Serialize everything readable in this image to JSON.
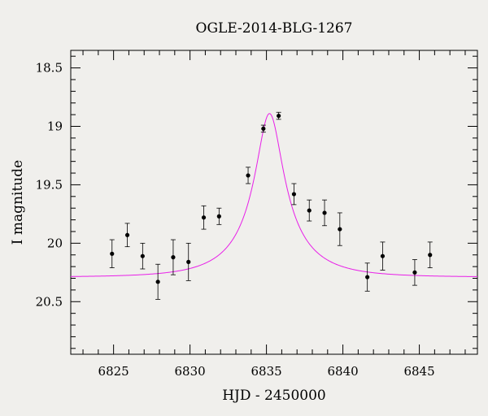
{
  "chart_data": {
    "type": "scatter",
    "title": "OGLE-2014-BLG-1267",
    "xlabel": "HJD - 2450000",
    "ylabel": "I magnitude",
    "xlim": [
      6822.2,
      6848.8
    ],
    "ylim": [
      20.95,
      18.35
    ],
    "y_inverted": true,
    "xticks": [
      6825,
      6830,
      6835,
      6840,
      6845
    ],
    "xtick_labels": [
      "6825",
      "6830",
      "6835",
      "6840",
      "6845"
    ],
    "yticks": [
      18.5,
      19,
      19.5,
      20,
      20.5
    ],
    "ytick_labels": [
      "18.5",
      "19",
      "19.5",
      "20",
      "20.5"
    ],
    "grid": false,
    "colors": {
      "model": "#e81ee8",
      "points": "#000000",
      "background": "#f0efec"
    },
    "series": [
      {
        "kind": "points_with_errorbars",
        "points": [
          {
            "x": 6824.9,
            "y": 20.09,
            "err": 0.12
          },
          {
            "x": 6825.9,
            "y": 19.93,
            "err": 0.1
          },
          {
            "x": 6826.9,
            "y": 20.11,
            "err": 0.11
          },
          {
            "x": 6827.9,
            "y": 20.33,
            "err": 0.15
          },
          {
            "x": 6828.9,
            "y": 20.12,
            "err": 0.15
          },
          {
            "x": 6829.9,
            "y": 20.16,
            "err": 0.16
          },
          {
            "x": 6830.9,
            "y": 19.78,
            "err": 0.1
          },
          {
            "x": 6831.9,
            "y": 19.77,
            "err": 0.07
          },
          {
            "x": 6833.8,
            "y": 19.42,
            "err": 0.07
          },
          {
            "x": 6834.8,
            "y": 19.02,
            "err": 0.03
          },
          {
            "x": 6835.8,
            "y": 18.91,
            "err": 0.03
          },
          {
            "x": 6836.8,
            "y": 19.58,
            "err": 0.09
          },
          {
            "x": 6837.8,
            "y": 19.72,
            "err": 0.09
          },
          {
            "x": 6838.8,
            "y": 19.74,
            "err": 0.11
          },
          {
            "x": 6839.8,
            "y": 19.88,
            "err": 0.14
          },
          {
            "x": 6841.6,
            "y": 20.29,
            "err": 0.12
          },
          {
            "x": 6842.6,
            "y": 20.11,
            "err": 0.12
          },
          {
            "x": 6844.7,
            "y": 20.25,
            "err": 0.11
          },
          {
            "x": 6845.7,
            "y": 20.1,
            "err": 0.11
          }
        ]
      },
      {
        "kind": "model_curve",
        "peak_x": 6835.2,
        "peak_mag": 18.89,
        "baseline_mag": 20.29,
        "tE": 3.9,
        "u0": 0.24
      }
    ]
  }
}
